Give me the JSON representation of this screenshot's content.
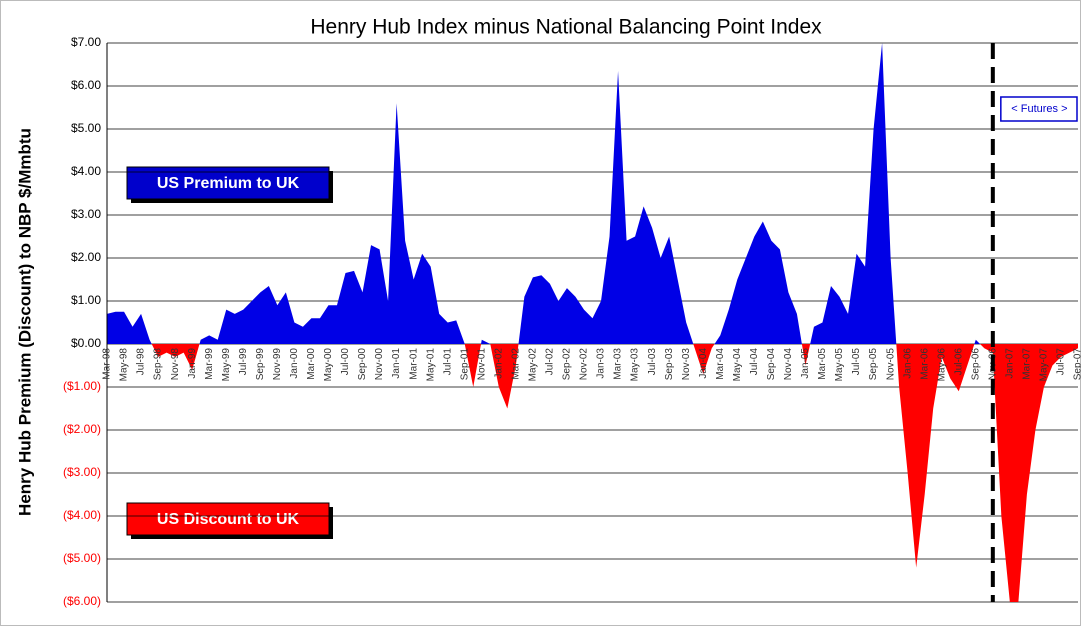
{
  "chart_data": {
    "type": "area",
    "title": "Henry Hub Index minus National Balancing Point Index",
    "y_label": "Henry Hub Premium (Discount) to NBP $/Mmbtu",
    "categories": [
      "Mar-98",
      null,
      "May-98",
      null,
      "Jul-98",
      null,
      "Sep-98",
      null,
      "Nov-98",
      null,
      "Jan-99",
      null,
      "Mar-99",
      null,
      "May-99",
      null,
      "Jul-99",
      null,
      "Sep-99",
      null,
      "Nov-99",
      null,
      "Jan-00",
      null,
      "Mar-00",
      null,
      "May-00",
      null,
      "Jul-00",
      null,
      "Sep-00",
      null,
      "Nov-00",
      null,
      "Jan-01",
      null,
      "Mar-01",
      null,
      "May-01",
      null,
      "Jul-01",
      null,
      "Sep-01",
      null,
      "Nov-01",
      null,
      "Jan-02",
      null,
      "Mar-02",
      null,
      "May-02",
      null,
      "Jul-02",
      null,
      "Sep-02",
      null,
      "Nov-02",
      null,
      "Jan-03",
      null,
      "Mar-03",
      null,
      "May-03",
      null,
      "Jul-03",
      null,
      "Sep-03",
      null,
      "Nov-03",
      null,
      "Jan-04",
      null,
      "Mar-04",
      null,
      "May-04",
      null,
      "Jul-04",
      null,
      "Sep-04",
      null,
      "Nov-04",
      null,
      "Jan-05",
      null,
      "Mar-05",
      null,
      "May-05",
      null,
      "Jul-05",
      null,
      "Sep-05",
      null,
      "Nov-05",
      null,
      "Jan-06",
      null,
      "Mar-06",
      null,
      "May-06",
      null,
      "Jul-06",
      null,
      "Sep-06",
      null,
      "Nov-06",
      null,
      "Jan-07",
      null,
      "Mar-07",
      null,
      "May-07",
      null,
      "Jul-07",
      null,
      "Sep-07"
    ],
    "values": [
      0.7,
      0.75,
      0.75,
      0.4,
      0.7,
      0.1,
      -0.3,
      -0.2,
      -0.3,
      -0.2,
      -0.6,
      0.1,
      0.2,
      0.1,
      0.8,
      0.7,
      0.8,
      1.0,
      1.2,
      1.35,
      0.9,
      1.2,
      0.5,
      0.4,
      0.6,
      0.6,
      0.9,
      0.9,
      1.65,
      1.7,
      1.2,
      2.3,
      2.2,
      1.0,
      5.6,
      2.4,
      1.5,
      2.1,
      1.8,
      0.7,
      0.5,
      0.55,
      0.0,
      -1.0,
      0.1,
      0.0,
      -1.0,
      -1.5,
      -0.5,
      1.1,
      1.55,
      1.6,
      1.4,
      1.0,
      1.3,
      1.1,
      0.8,
      0.6,
      1.0,
      2.5,
      6.35,
      2.4,
      2.5,
      3.2,
      2.7,
      2.0,
      2.5,
      1.5,
      0.5,
      -0.1,
      -0.7,
      -0.1,
      0.2,
      0.8,
      1.5,
      2.0,
      2.5,
      2.85,
      2.4,
      2.2,
      1.2,
      0.7,
      -0.5,
      0.4,
      0.5,
      1.35,
      1.1,
      0.7,
      2.1,
      1.8,
      5.0,
      7.0,
      2.0,
      -1.0,
      -3.0,
      -5.2,
      -3.5,
      -1.5,
      -0.3,
      -0.8,
      -1.1,
      -0.5,
      0.1,
      -0.1,
      -0.2,
      -4.0,
      -6.0,
      -6.0,
      -3.5,
      -2.0,
      -1.0,
      -0.5,
      -0.3,
      -0.2,
      -0.1
    ],
    "positive_color": "#0000e6",
    "negative_color": "#ff0000",
    "ylim": [
      -6,
      7
    ],
    "yticks": [
      {
        "value": 7,
        "label": "$7.00"
      },
      {
        "value": 6,
        "label": "$6.00"
      },
      {
        "value": 5,
        "label": "$5.00"
      },
      {
        "value": 4,
        "label": "$4.00"
      },
      {
        "value": 3,
        "label": "$3.00"
      },
      {
        "value": 2,
        "label": "$2.00"
      },
      {
        "value": 1,
        "label": "$1.00"
      },
      {
        "value": 0,
        "label": "$0.00"
      },
      {
        "value": -1,
        "label": "($1.00)"
      },
      {
        "value": -2,
        "label": "($2.00)"
      },
      {
        "value": -3,
        "label": "($3.00)"
      },
      {
        "value": -4,
        "label": "($4.00)"
      },
      {
        "value": -5,
        "label": "($5.00)"
      },
      {
        "value": -6,
        "label": "($6.00)"
      }
    ],
    "grid": true,
    "futures_from": "Nov-06",
    "annotations": [
      {
        "text": "US Premium to UK"
      },
      {
        "text": "US Discount to UK"
      },
      {
        "text": "< Futures >"
      }
    ]
  }
}
